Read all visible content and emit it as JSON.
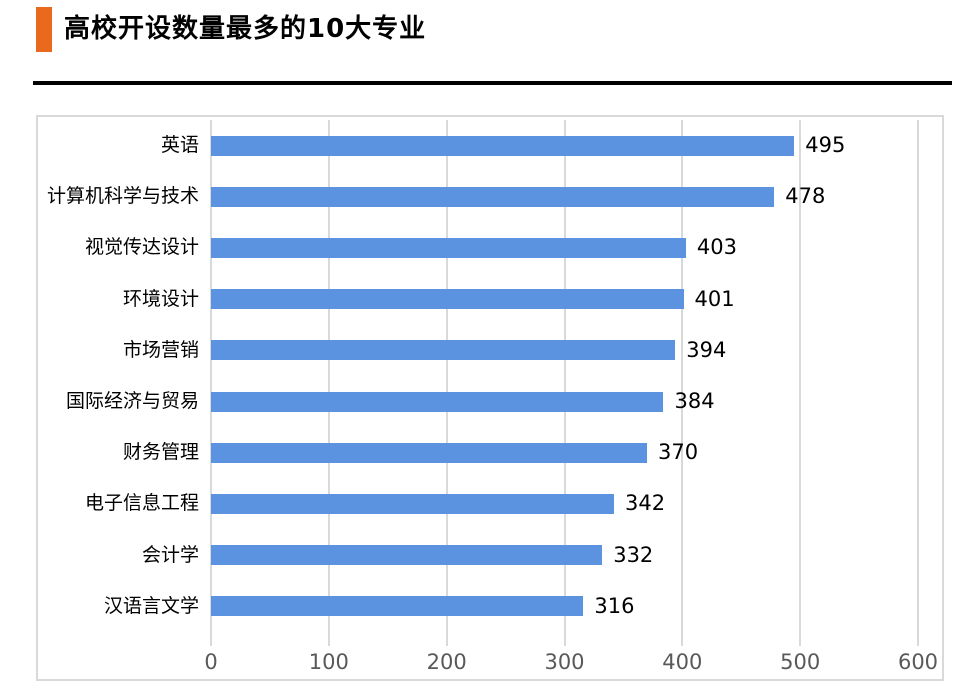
{
  "header": {
    "title": "高校开设数量最多的10大专业",
    "accent_color": "#E96A1E",
    "divider_color": "#000000"
  },
  "chart_data": {
    "type": "bar",
    "orientation": "horizontal",
    "title": "高校开设数量最多的10大专业",
    "categories": [
      "英语",
      "计算机科学与技术",
      "视觉传达设计",
      "环境设计",
      "市场营销",
      "国际经济与贸易",
      "财务管理",
      "电子信息工程",
      "会计学",
      "汉语言文学"
    ],
    "values": [
      495,
      478,
      403,
      401,
      394,
      384,
      370,
      342,
      332,
      316
    ],
    "xlabel": "",
    "ylabel": "",
    "xlim": [
      0,
      600
    ],
    "x_ticks": [
      "0",
      "100",
      "200",
      "300",
      "400",
      "500",
      "600"
    ],
    "grid": true,
    "legend": "none",
    "value_labels": true,
    "bar_color": "#5B93E1",
    "grid_color": "#D9D9D9",
    "frame_color": "#D9D9D9",
    "tick_label_color": "#595959",
    "label_color": "#000000"
  }
}
